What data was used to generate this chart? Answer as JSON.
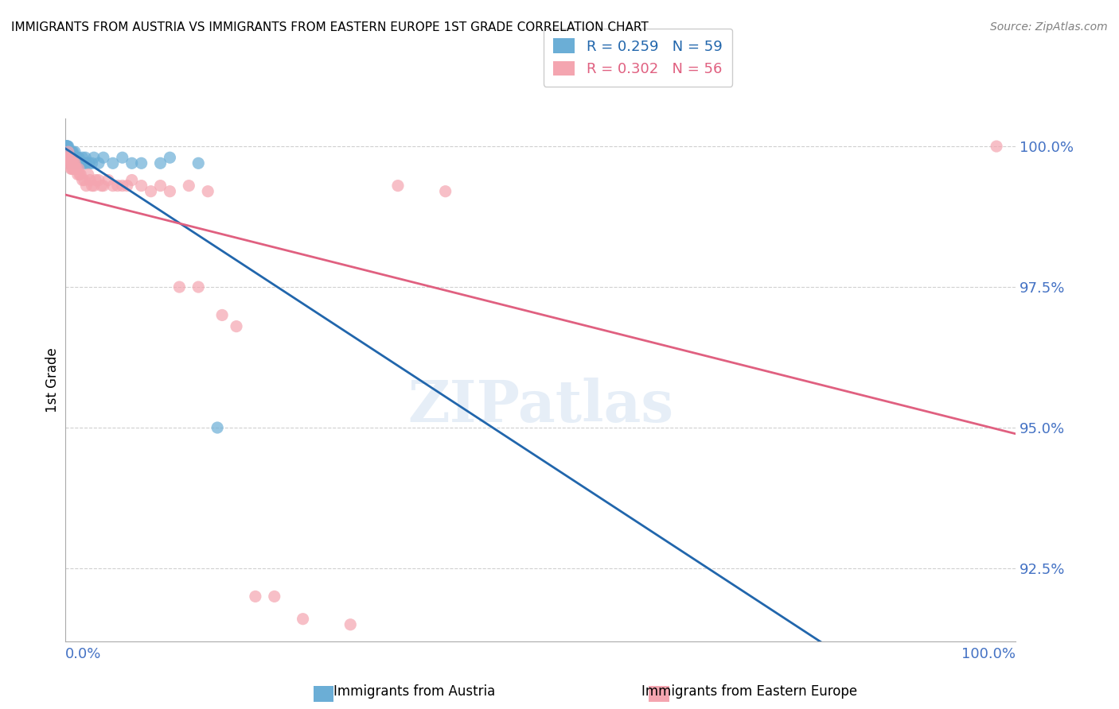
{
  "title": "IMMIGRANTS FROM AUSTRIA VS IMMIGRANTS FROM EASTERN EUROPE 1ST GRADE CORRELATION CHART",
  "source": "Source: ZipAtlas.com",
  "ylabel": "1st Grade",
  "legend1_label": "Immigrants from Austria",
  "legend2_label": "Immigrants from Eastern Europe",
  "R1": 0.259,
  "N1": 59,
  "R2": 0.302,
  "N2": 56,
  "color_blue": "#6baed6",
  "color_blue_line": "#2166ac",
  "color_pink": "#f4a5b0",
  "color_pink_line": "#e06080",
  "color_axis_labels": "#4472c4",
  "ytick_labels": [
    "92.5%",
    "95.0%",
    "97.5%",
    "100.0%"
  ],
  "ytick_values": [
    0.925,
    0.95,
    0.975,
    1.0
  ],
  "xmin": 0.0,
  "xmax": 1.0,
  "ymin": 0.912,
  "ymax": 1.005,
  "blue_x": [
    0.001,
    0.001,
    0.001,
    0.002,
    0.002,
    0.002,
    0.002,
    0.003,
    0.003,
    0.003,
    0.003,
    0.003,
    0.004,
    0.004,
    0.004,
    0.004,
    0.004,
    0.005,
    0.005,
    0.005,
    0.005,
    0.006,
    0.006,
    0.006,
    0.007,
    0.007,
    0.007,
    0.008,
    0.008,
    0.009,
    0.009,
    0.01,
    0.01,
    0.011,
    0.011,
    0.012,
    0.012,
    0.013,
    0.014,
    0.015,
    0.016,
    0.017,
    0.018,
    0.02,
    0.021,
    0.022,
    0.025,
    0.028,
    0.03,
    0.035,
    0.04,
    0.05,
    0.06,
    0.07,
    0.08,
    0.1,
    0.11,
    0.14,
    0.16
  ],
  "blue_y": [
    1.0,
    1.0,
    1.0,
    1.0,
    1.0,
    1.0,
    0.999,
    1.0,
    0.999,
    0.999,
    0.998,
    0.998,
    0.999,
    0.999,
    0.998,
    0.998,
    0.997,
    0.999,
    0.998,
    0.997,
    0.997,
    0.999,
    0.998,
    0.997,
    0.999,
    0.998,
    0.997,
    0.999,
    0.998,
    0.998,
    0.997,
    0.999,
    0.997,
    0.998,
    0.997,
    0.998,
    0.997,
    0.997,
    0.998,
    0.997,
    0.997,
    0.997,
    0.998,
    0.997,
    0.998,
    0.997,
    0.997,
    0.997,
    0.998,
    0.997,
    0.998,
    0.997,
    0.998,
    0.997,
    0.997,
    0.997,
    0.998,
    0.997,
    0.95
  ],
  "pink_x": [
    0.002,
    0.003,
    0.004,
    0.004,
    0.005,
    0.005,
    0.006,
    0.006,
    0.007,
    0.007,
    0.008,
    0.008,
    0.009,
    0.009,
    0.01,
    0.01,
    0.011,
    0.012,
    0.013,
    0.014,
    0.015,
    0.016,
    0.018,
    0.02,
    0.022,
    0.024,
    0.026,
    0.028,
    0.03,
    0.032,
    0.035,
    0.038,
    0.04,
    0.045,
    0.05,
    0.055,
    0.06,
    0.065,
    0.07,
    0.08,
    0.09,
    0.1,
    0.11,
    0.12,
    0.13,
    0.14,
    0.15,
    0.165,
    0.18,
    0.2,
    0.22,
    0.25,
    0.3,
    0.35,
    0.4,
    0.98
  ],
  "pink_y": [
    0.998,
    0.999,
    0.998,
    0.997,
    0.998,
    0.997,
    0.997,
    0.996,
    0.997,
    0.996,
    0.997,
    0.996,
    0.997,
    0.996,
    0.997,
    0.996,
    0.996,
    0.996,
    0.995,
    0.996,
    0.995,
    0.995,
    0.994,
    0.994,
    0.993,
    0.995,
    0.994,
    0.993,
    0.993,
    0.994,
    0.994,
    0.993,
    0.993,
    0.994,
    0.993,
    0.993,
    0.993,
    0.993,
    0.994,
    0.993,
    0.992,
    0.993,
    0.992,
    0.975,
    0.993,
    0.975,
    0.992,
    0.97,
    0.968,
    0.92,
    0.92,
    0.916,
    0.915,
    0.993,
    0.992,
    1.0
  ]
}
